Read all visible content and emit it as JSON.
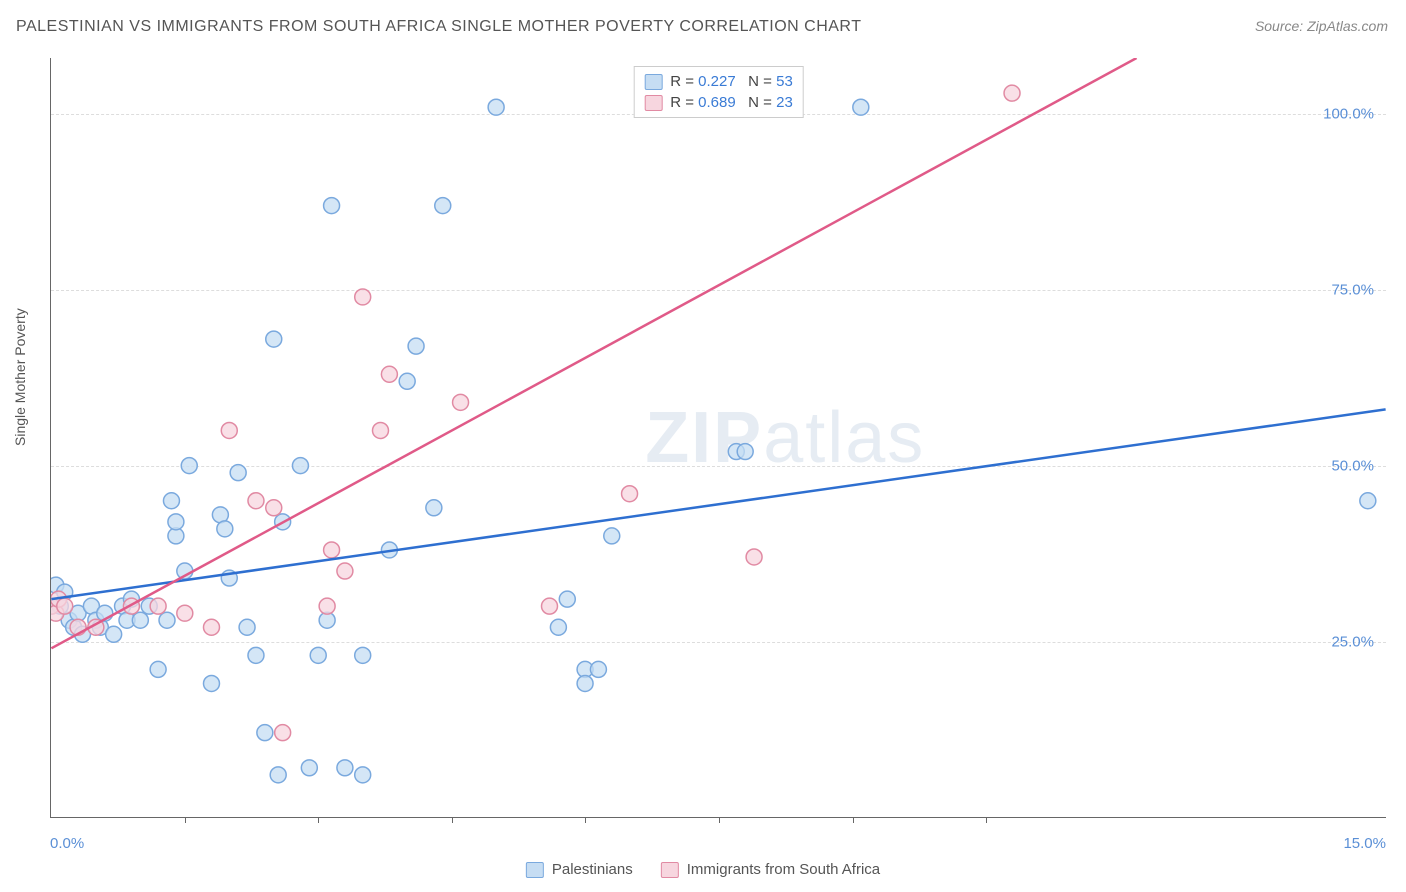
{
  "title": "PALESTINIAN VS IMMIGRANTS FROM SOUTH AFRICA SINGLE MOTHER POVERTY CORRELATION CHART",
  "source": "Source: ZipAtlas.com",
  "ylabel": "Single Mother Poverty",
  "watermark_a": "ZIP",
  "watermark_b": "atlas",
  "chart": {
    "type": "scatter",
    "xlim": [
      0,
      15
    ],
    "ylim": [
      0,
      108
    ],
    "x_ticks": [
      0,
      1.5,
      3.0,
      4.5,
      6.0,
      7.5,
      9.0,
      10.5,
      15
    ],
    "x_tick_labels_shown": {
      "0": "0.0%",
      "15": "15.0%"
    },
    "y_gridlines": [
      25,
      50,
      75,
      100
    ],
    "y_tick_labels": {
      "25": "25.0%",
      "50": "50.0%",
      "75": "75.0%",
      "100": "100.0%"
    },
    "background_color": "#ffffff",
    "grid_color": "#dddddd",
    "axis_color": "#666666",
    "tick_label_color": "#5a8fd6",
    "series": [
      {
        "name": "Palestinians",
        "legend_label": "Palestinians",
        "R": "0.227",
        "N": "53",
        "point_fill": "#c6ddf3",
        "point_stroke": "#7aa9de",
        "point_radius": 8,
        "trend_color": "#2e6fd0",
        "trend_width": 2.5,
        "trend": {
          "x1": 0,
          "y1": 31,
          "x2": 15,
          "y2": 58
        },
        "swatch_fill": "#c6ddf3",
        "swatch_border": "#7aa9de",
        "points": [
          [
            0.0,
            30
          ],
          [
            0.05,
            33
          ],
          [
            0.1,
            30
          ],
          [
            0.15,
            32
          ],
          [
            0.2,
            28
          ],
          [
            0.25,
            27
          ],
          [
            0.3,
            29
          ],
          [
            0.35,
            26
          ],
          [
            0.45,
            30
          ],
          [
            0.5,
            28
          ],
          [
            0.55,
            27
          ],
          [
            0.6,
            29
          ],
          [
            0.7,
            26
          ],
          [
            0.8,
            30
          ],
          [
            0.85,
            28
          ],
          [
            0.9,
            31
          ],
          [
            1.0,
            28
          ],
          [
            1.1,
            30
          ],
          [
            1.2,
            21
          ],
          [
            1.3,
            28
          ],
          [
            1.35,
            45
          ],
          [
            1.4,
            40
          ],
          [
            1.4,
            42
          ],
          [
            1.5,
            35
          ],
          [
            1.55,
            50
          ],
          [
            1.8,
            19
          ],
          [
            1.9,
            43
          ],
          [
            1.95,
            41
          ],
          [
            2.0,
            34
          ],
          [
            2.1,
            49
          ],
          [
            2.2,
            27
          ],
          [
            2.3,
            23
          ],
          [
            2.4,
            12
          ],
          [
            2.5,
            68
          ],
          [
            2.55,
            6
          ],
          [
            2.6,
            42
          ],
          [
            2.8,
            50
          ],
          [
            2.9,
            7
          ],
          [
            3.0,
            23
          ],
          [
            3.1,
            28
          ],
          [
            3.15,
            87
          ],
          [
            3.3,
            7
          ],
          [
            3.5,
            23
          ],
          [
            3.5,
            6
          ],
          [
            3.8,
            38
          ],
          [
            4.0,
            62
          ],
          [
            4.1,
            67
          ],
          [
            4.3,
            44
          ],
          [
            4.4,
            87
          ],
          [
            5.0,
            101
          ],
          [
            5.7,
            27
          ],
          [
            5.8,
            31
          ],
          [
            6.0,
            21
          ],
          [
            6.0,
            19
          ],
          [
            6.15,
            21
          ],
          [
            6.3,
            40
          ],
          [
            7.7,
            52
          ],
          [
            7.8,
            52
          ],
          [
            9.1,
            101
          ],
          [
            14.8,
            45
          ]
        ]
      },
      {
        "name": "Immigrants from South Africa",
        "legend_label": "Immigrants from South Africa",
        "R": "0.689",
        "N": "23",
        "point_fill": "#f7d6df",
        "point_stroke": "#e18aa3",
        "point_radius": 8,
        "trend_color": "#e05a88",
        "trend_width": 2.5,
        "trend": {
          "x1": 0,
          "y1": 24,
          "x2": 12.2,
          "y2": 108
        },
        "swatch_fill": "#f7d6df",
        "swatch_border": "#e18aa3",
        "points": [
          [
            0.0,
            30
          ],
          [
            0.05,
            29
          ],
          [
            0.08,
            31
          ],
          [
            0.15,
            30
          ],
          [
            0.3,
            27
          ],
          [
            0.5,
            27
          ],
          [
            0.9,
            30
          ],
          [
            1.2,
            30
          ],
          [
            1.5,
            29
          ],
          [
            1.8,
            27
          ],
          [
            2.0,
            55
          ],
          [
            2.3,
            45
          ],
          [
            2.5,
            44
          ],
          [
            2.6,
            12
          ],
          [
            3.1,
            30
          ],
          [
            3.15,
            38
          ],
          [
            3.3,
            35
          ],
          [
            3.5,
            74
          ],
          [
            3.7,
            55
          ],
          [
            3.8,
            63
          ],
          [
            4.6,
            59
          ],
          [
            5.6,
            30
          ],
          [
            6.5,
            46
          ],
          [
            7.9,
            37
          ],
          [
            10.8,
            103
          ]
        ]
      }
    ]
  },
  "legend_top_stats": [
    {
      "swatch_fill": "#c6ddf3",
      "swatch_border": "#7aa9de",
      "R": "0.227",
      "N": "53"
    },
    {
      "swatch_fill": "#f7d6df",
      "swatch_border": "#e18aa3",
      "R": "0.689",
      "N": "23"
    }
  ]
}
